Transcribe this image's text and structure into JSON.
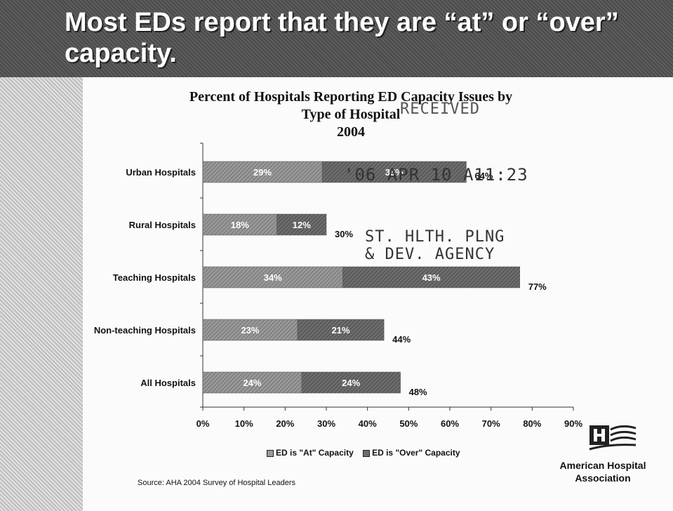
{
  "header": {
    "title": "Most EDs report that they are “at” or “over” capacity."
  },
  "chart_data": {
    "type": "bar",
    "orientation": "horizontal",
    "stacked": true,
    "title_lines": [
      "Percent of Hospitals Reporting ED Capacity Issues by",
      "Type of Hospital",
      "2004"
    ],
    "categories": [
      "Urban Hospitals",
      "Rural Hospitals",
      "Teaching Hospitals",
      "Non-teaching Hospitals",
      "All Hospitals"
    ],
    "series": [
      {
        "name": "ED is \"At\" Capacity",
        "values": [
          29,
          18,
          34,
          23,
          24
        ],
        "labels": [
          "29%",
          "18%",
          "34%",
          "23%",
          "24%"
        ]
      },
      {
        "name": "ED is \"Over\" Capacity",
        "values": [
          35,
          12,
          43,
          21,
          24
        ],
        "labels": [
          "35%",
          "12%",
          "43%",
          "21%",
          "24%"
        ]
      }
    ],
    "totals": [
      "64%",
      "30%",
      "77%",
      "44%",
      "48%"
    ],
    "xticks": [
      "0%",
      "10%",
      "20%",
      "30%",
      "40%",
      "50%",
      "60%",
      "70%",
      "80%",
      "90%"
    ],
    "xlim": [
      0,
      90
    ],
    "legend_position": "bottom",
    "colors": {
      "at": "#9a9a9a",
      "over": "#6e6e6e"
    }
  },
  "source": "Source: AHA 2004 Survey of Hospital Leaders",
  "logo": {
    "line1": "American Hospital",
    "line2": "Association",
    "mark": "aha-logo-icon"
  },
  "stamps": {
    "received": "RECEIVED",
    "date": "'06  APR 10  A11:23",
    "agency_line1": "ST. HLTH. PLNG",
    "agency_line2": "& DEV. AGENCY"
  }
}
